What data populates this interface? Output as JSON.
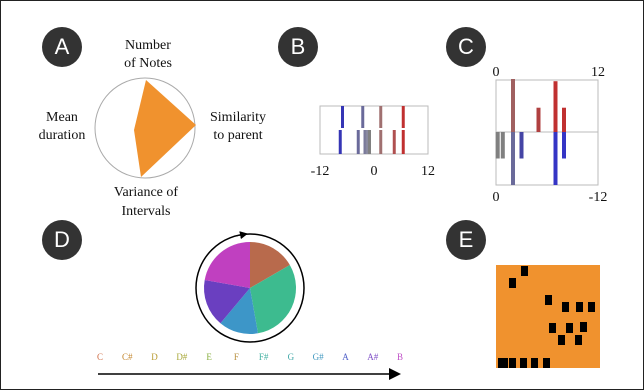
{
  "panels": [
    {
      "letter": "A",
      "axes": {
        "top": [
          "Number",
          "of Notes"
        ],
        "right": [
          "Similarity",
          "to parent"
        ],
        "bottom": [
          "Variance of",
          "Intervals"
        ],
        "left": [
          "Mean",
          "duration"
        ]
      }
    },
    {
      "letter": "B",
      "axis_labels": [
        -12,
        0,
        12
      ],
      "bars": [
        {
          "x": -7,
          "row": "top",
          "color": "#3535b5"
        },
        {
          "x": -2.5,
          "row": "top",
          "color": "#6a6a9a"
        },
        {
          "x": 1.5,
          "row": "top",
          "color": "#a07070"
        },
        {
          "x": 6.5,
          "row": "top",
          "color": "#c03030"
        },
        {
          "x": -7.5,
          "row": "bottom",
          "color": "#3535b5"
        },
        {
          "x": -3.5,
          "row": "bottom",
          "color": "#6a6a9a"
        },
        {
          "x": -2,
          "row": "bottom",
          "color": "#7a7a9a"
        },
        {
          "x": -1.5,
          "row": "bottom",
          "color": "#8a8aa0"
        },
        {
          "x": -1,
          "row": "bottom",
          "color": "#808080"
        },
        {
          "x": 1.5,
          "row": "bottom",
          "color": "#a07070"
        },
        {
          "x": 4.5,
          "row": "bottom",
          "color": "#b05050"
        },
        {
          "x": 6.5,
          "row": "bottom",
          "color": "#c03030"
        }
      ]
    },
    {
      "letter": "C",
      "top_labels": [
        0,
        12
      ],
      "bottom_labels": [
        0,
        -12
      ],
      "bars": [
        {
          "x": 2,
          "value": 12,
          "color": "#a06060"
        },
        {
          "x": 5,
          "value": 5.5,
          "color": "#b04040"
        },
        {
          "x": 7,
          "value": 11.5,
          "color": "#c03030"
        },
        {
          "x": 8,
          "value": 5.5,
          "color": "#c03030"
        },
        {
          "x": 0.2,
          "value": -6,
          "color": "#808080"
        },
        {
          "x": 0.8,
          "value": -6,
          "color": "#808080"
        },
        {
          "x": 2,
          "value": -12,
          "color": "#6a6a9a"
        },
        {
          "x": 3,
          "value": -6,
          "color": "#4545a5"
        },
        {
          "x": 7,
          "value": -12,
          "color": "#3535c5"
        },
        {
          "x": 8,
          "value": -6,
          "color": "#3535c5"
        }
      ]
    },
    {
      "letter": "D",
      "slices": [
        {
          "value": 60,
          "color": "#b86a4c"
        },
        {
          "value": 110,
          "color": "#3dbb8f"
        },
        {
          "value": 50,
          "color": "#3d96c8"
        },
        {
          "value": 60,
          "color": "#6a3fc0"
        },
        {
          "value": 80,
          "color": "#c040c0"
        }
      ],
      "notes": [
        {
          "name": "C",
          "color": "#d0704a"
        },
        {
          "name": "C#",
          "color": "#c48830"
        },
        {
          "name": "D",
          "color": "#b89a30"
        },
        {
          "name": "D#",
          "color": "#a8a838"
        },
        {
          "name": "E",
          "color": "#88b040"
        },
        {
          "name": "F",
          "color": "#b89040"
        },
        {
          "name": "F#",
          "color": "#40b0a0"
        },
        {
          "name": "G",
          "color": "#40a8a8"
        },
        {
          "name": "G#",
          "color": "#4098c0"
        },
        {
          "name": "A",
          "color": "#5060c8"
        },
        {
          "name": "A#",
          "color": "#8050c8"
        },
        {
          "name": "B",
          "color": "#c050c8"
        }
      ]
    },
    {
      "letter": "E"
    }
  ]
}
